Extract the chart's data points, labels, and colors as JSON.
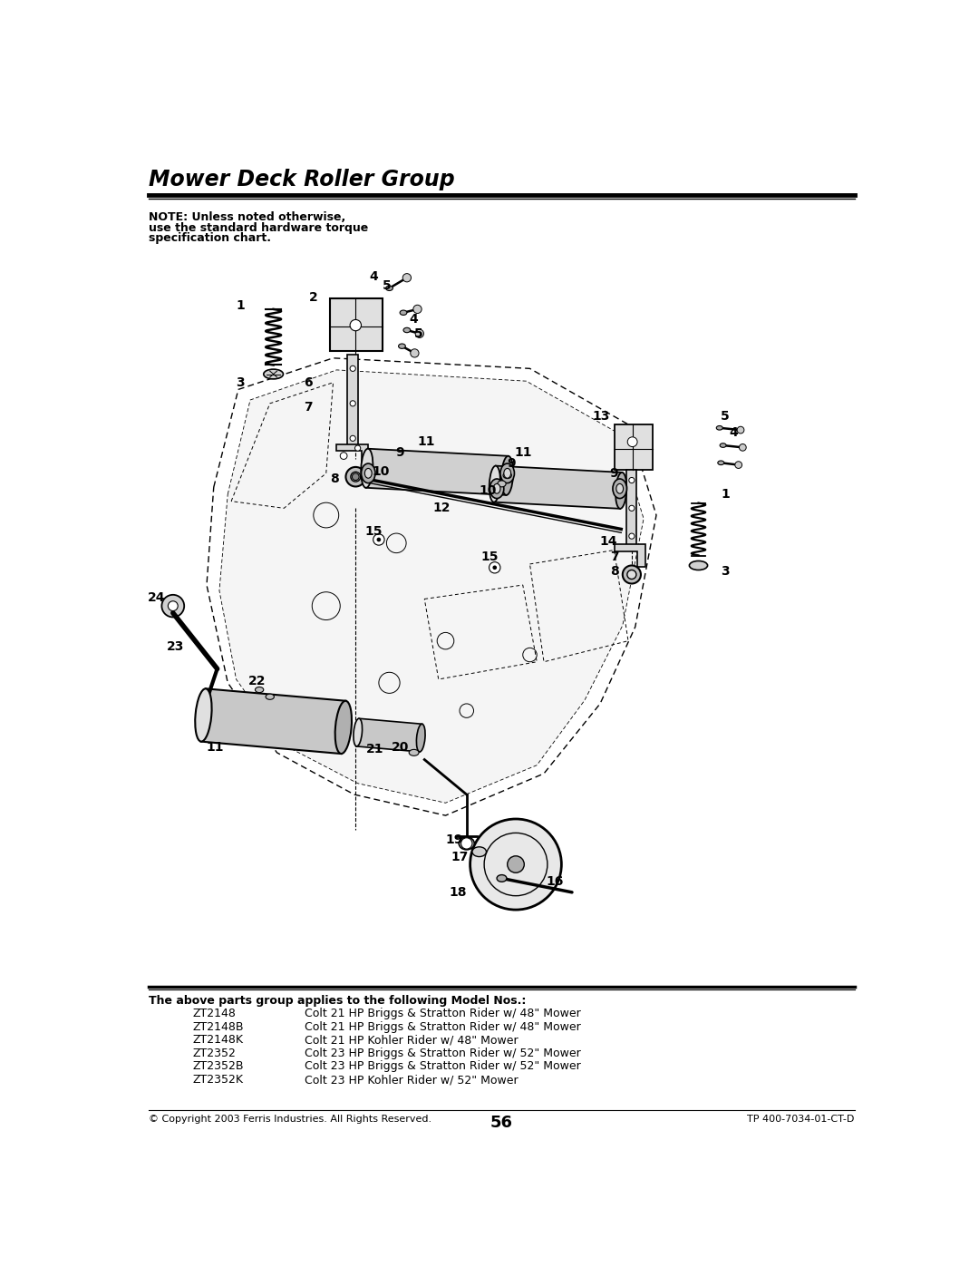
{
  "title": "Mower Deck Roller Group",
  "note_lines": [
    "NOTE: Unless noted otherwise,",
    "use the standard hardware torque",
    "specification chart."
  ],
  "page_number": "56",
  "copyright": "© Copyright 2003 Ferris Industries. All Rights Reserved.",
  "part_number": "TP 400-7034-01-CT-D",
  "footer_header": "The above parts group applies to the following Model Nos.:",
  "models": [
    [
      "ZT2148",
      "Colt 21 HP Briggs & Stratton Rider w/ 48\" Mower"
    ],
    [
      "ZT2148B",
      "Colt 21 HP Briggs & Stratton Rider w/ 48\" Mower"
    ],
    [
      "ZT2148K",
      "Colt 21 HP Kohler Rider w/ 48\" Mower"
    ],
    [
      "ZT2352",
      "Colt 23 HP Briggs & Stratton Rider w/ 52\" Mower"
    ],
    [
      "ZT2352B",
      "Colt 23 HP Briggs & Stratton Rider w/ 52\" Mower"
    ],
    [
      "ZT2352K",
      "Colt 23 HP Kohler Rider w/ 52\" Mower"
    ]
  ],
  "bg_color": "#ffffff",
  "text_color": "#000000"
}
